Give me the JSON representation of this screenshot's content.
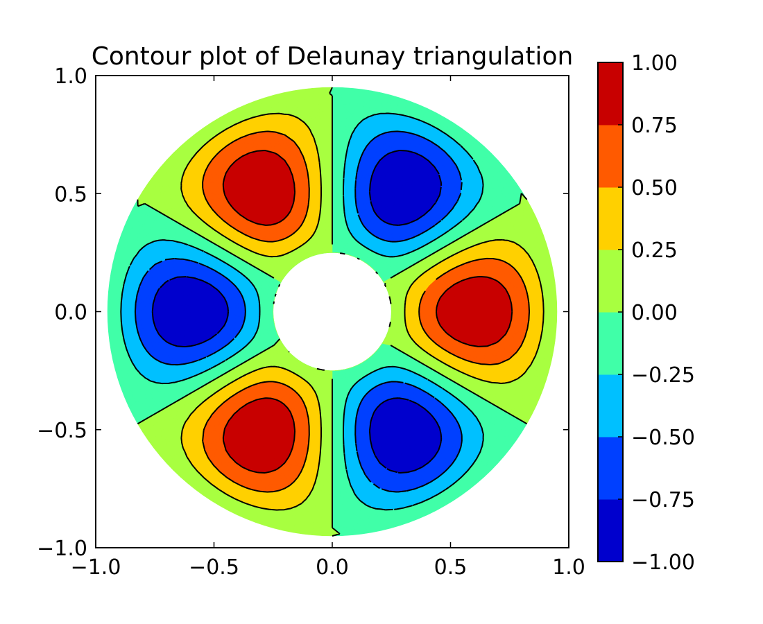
{
  "chart_data": {
    "type": "contour",
    "title": "Contour plot of Delaunay triangulation",
    "xlabel": "",
    "ylabel": "",
    "xlim": [
      -1.0,
      1.0
    ],
    "ylim": [
      -1.0,
      1.0
    ],
    "x_ticks": [
      -1.0,
      -0.5,
      0.0,
      0.5,
      1.0
    ],
    "y_ticks": [
      -1.0,
      -0.5,
      0.0,
      0.5,
      1.0
    ],
    "x_tick_labels": [
      "−1.0",
      "−0.5",
      "0.0",
      "0.5",
      "1.0"
    ],
    "y_tick_labels": [
      "−1.0",
      "−0.5",
      "0.0",
      "0.5",
      "1.0"
    ],
    "domain": {
      "shape": "annulus",
      "inner_radius": 0.25,
      "outer_radius": 0.95,
      "center": [
        0.0,
        0.0
      ]
    },
    "field": "z = cos(3θ) · sin(π (r − 0.25) / 0.7)",
    "levels": [
      -1.0,
      -0.75,
      -0.5,
      -0.25,
      0.0,
      0.25,
      0.5,
      0.75,
      1.0
    ],
    "fill_colors": [
      "#0000cd",
      "#0040ff",
      "#00c0ff",
      "#40ffa8",
      "#a8ff40",
      "#ffd000",
      "#ff5a00",
      "#c80000"
    ],
    "negative_contours": "dashed",
    "colorbar": {
      "range": [
        -1.0,
        1.0
      ],
      "tick_values": [
        1.0,
        0.75,
        0.5,
        0.25,
        0.0,
        -0.25,
        -0.5,
        -0.75,
        -1.0
      ],
      "tick_labels": [
        "1.00",
        "0.75",
        "0.50",
        "0.25",
        "0.00",
        "−0.25",
        "−0.50",
        "−0.75",
        "−1.00"
      ]
    },
    "grid": false,
    "legend": "none"
  }
}
